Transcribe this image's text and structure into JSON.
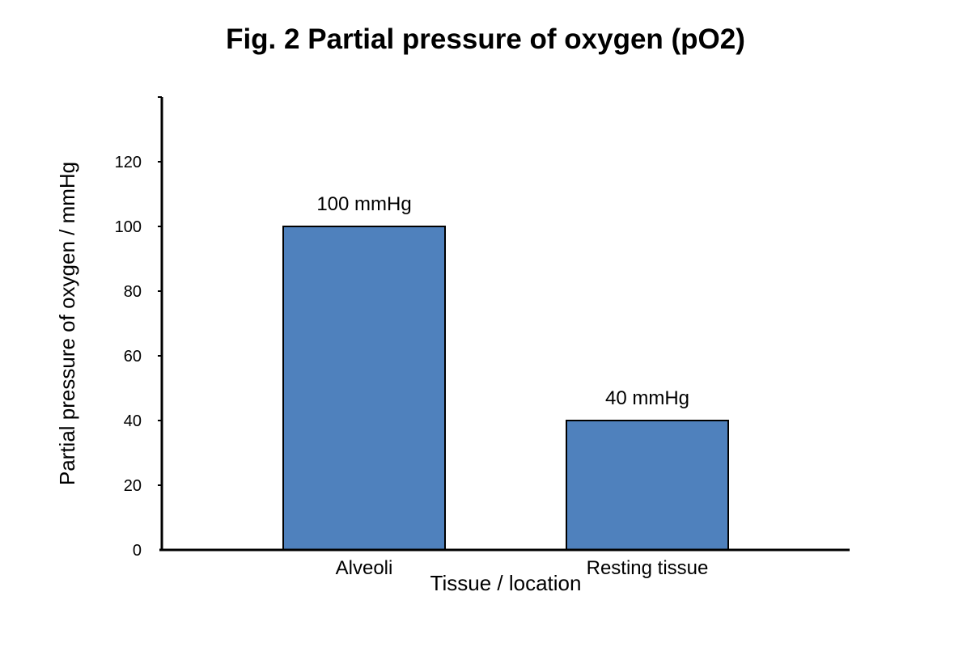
{
  "chart_data": {
    "type": "bar",
    "title": "Fig. 2 Partial pressure of oxygen (pO2)",
    "xlabel": "Tissue / location",
    "ylabel": "Partial pressure of oxygen / mmHg",
    "categories": [
      "Alveoli",
      "Resting tissue"
    ],
    "values": [
      100,
      40
    ],
    "data_labels": [
      "100 mmHg",
      "40 mmHg"
    ],
    "yticks": [
      0,
      20,
      40,
      60,
      80,
      100,
      120
    ],
    "ylim": [
      0,
      140
    ],
    "grid": false,
    "legend": "none",
    "bar_color": "#4f81bd"
  }
}
